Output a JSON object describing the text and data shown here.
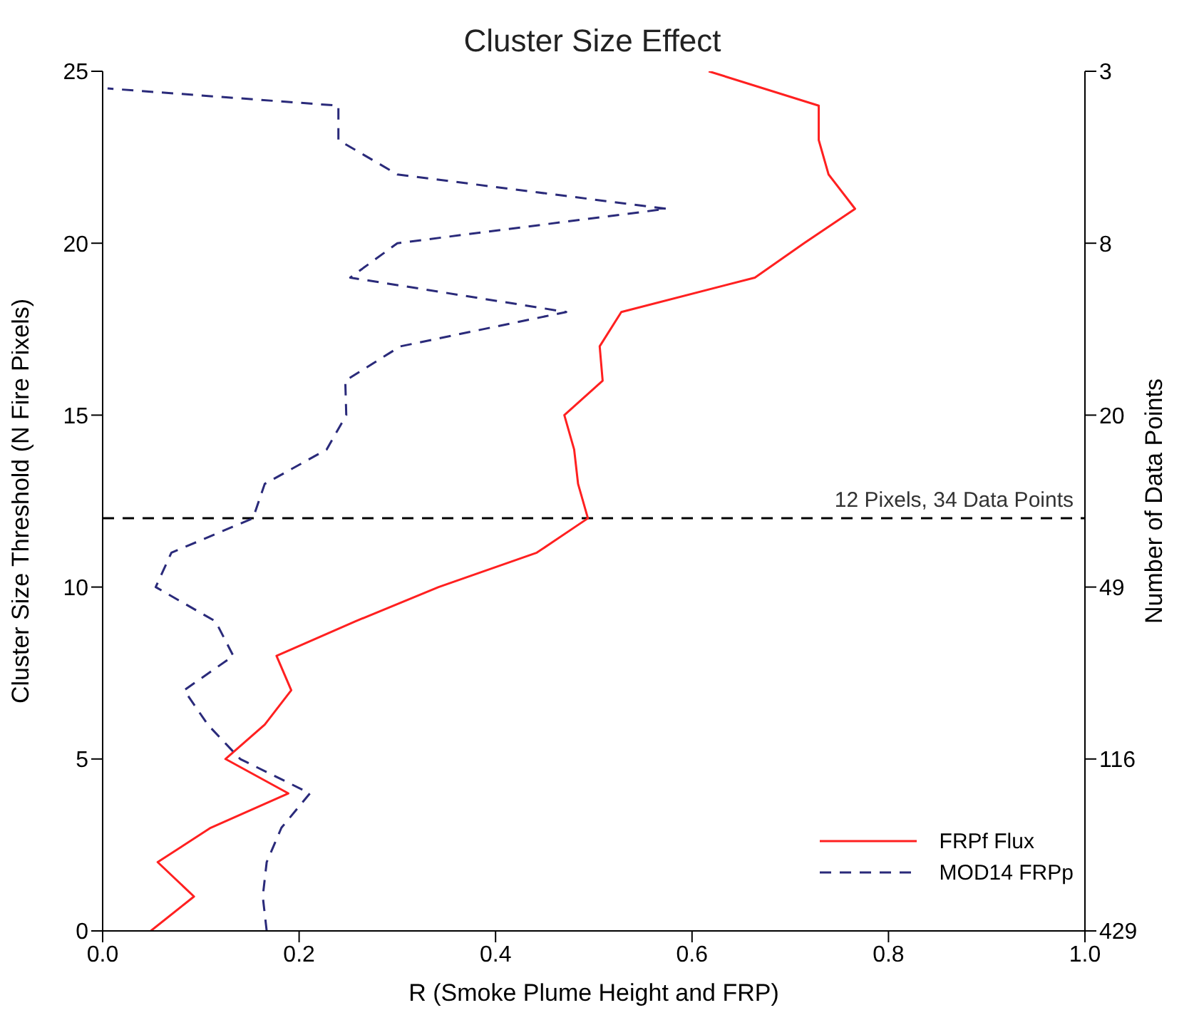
{
  "chart_data": {
    "type": "line",
    "title": "Cluster Size Effect",
    "xlabel": "R (Smoke Plume Height and FRP)",
    "ylabel": "Cluster Size Threshold (N Fire Pixels)",
    "y2label": "Number of Data Points",
    "xlim": [
      0,
      1
    ],
    "xticks": [
      {
        "value": 0,
        "label": "0.0"
      },
      {
        "value": 0.2,
        "label": "0.2"
      },
      {
        "value": 0.4,
        "label": "0.4"
      },
      {
        "value": 0.6,
        "label": "0.6"
      },
      {
        "value": 0.8,
        "label": "0.8"
      },
      {
        "value": 1,
        "label": "1.0"
      }
    ],
    "ylim": [
      0,
      25
    ],
    "yticks": [
      0,
      5,
      10,
      15,
      20,
      25
    ],
    "y2_categories": [
      "3",
      "8",
      "20",
      "49",
      "116",
      "429"
    ],
    "series": [
      {
        "name": "FRPf Flux",
        "color": "#ff2020",
        "line_style": "solid",
        "x": [
          0.049,
          0.093,
          0.056,
          0.11,
          0.189,
          0.125,
          0.165,
          0.192,
          0.177,
          0.257,
          0.342,
          0.442,
          0.494,
          0.484,
          0.48,
          0.47,
          0.509,
          0.506,
          0.528,
          0.664,
          0.714,
          0.766,
          0.739,
          0.729,
          0.729,
          0.617
        ],
        "values": [
          0,
          1,
          2,
          3,
          4,
          5,
          6,
          7,
          8,
          9,
          10,
          11,
          12,
          13,
          14,
          15,
          16,
          17,
          18,
          19,
          20,
          21,
          22,
          23,
          24,
          25
        ]
      },
      {
        "name": "MOD14 FRPp",
        "color": "#2a2a7a",
        "line_style": "dashed",
        "x": [
          0.167,
          0.163,
          0.167,
          0.182,
          0.211,
          0.14,
          0.107,
          0.083,
          0.133,
          0.115,
          0.054,
          0.07,
          0.153,
          0.165,
          0.228,
          0.248,
          0.247,
          0.303,
          0.472,
          0.252,
          0.3,
          0.574,
          0.3,
          0.24,
          0.24,
          0.005
        ],
        "values": [
          0,
          1,
          2,
          3,
          4,
          5,
          6,
          7,
          8,
          9,
          10,
          11,
          12,
          13,
          14,
          15,
          16,
          17,
          18,
          19,
          20,
          21,
          22,
          23,
          24,
          24.5
        ]
      }
    ],
    "ref_lines": [
      {
        "axis": "y",
        "value": 12,
        "label": "12 Pixels, 34 Data Points",
        "color": "#000000",
        "line_style": "dashed"
      }
    ],
    "legend": "bottom right",
    "grid": false,
    "marker": "none"
  }
}
